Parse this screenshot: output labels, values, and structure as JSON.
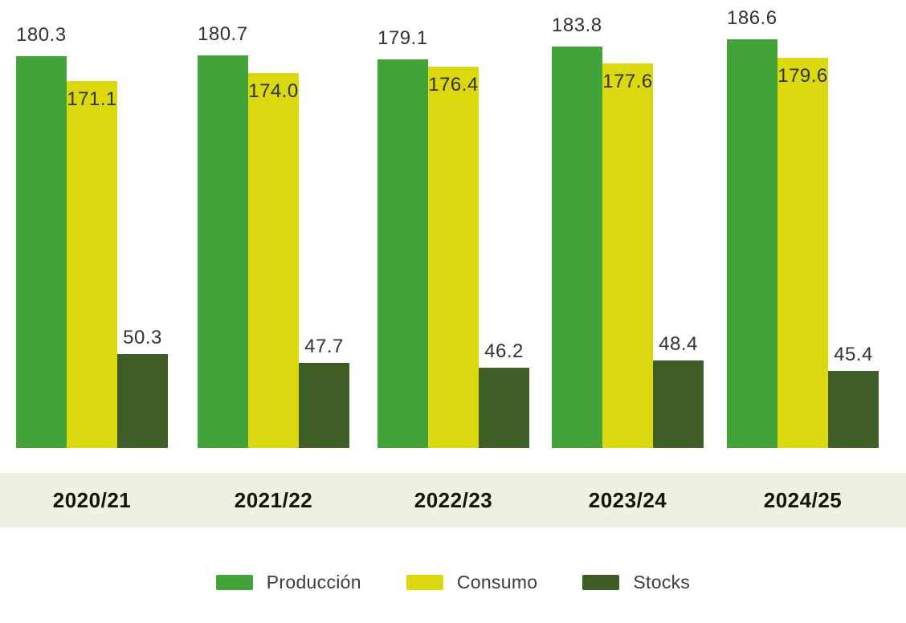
{
  "chart_data": {
    "type": "bar",
    "title": "",
    "categories": [
      "2020/21",
      "2021/22",
      "2022/23",
      "2023/24",
      "2024/25"
    ],
    "series": [
      {
        "name": "Producción",
        "color": "#43a339",
        "values": [
          180.3,
          180.7,
          179.1,
          183.8,
          186.6
        ],
        "display": [
          "180.3",
          "180.7",
          "179.1",
          "183.8",
          "186.6"
        ]
      },
      {
        "name": "Consumo",
        "color": "#dcd810",
        "values": [
          171.1,
          174.0,
          176.4,
          177.6,
          179.6
        ],
        "display": [
          "171.1",
          "174.0",
          "176.4",
          "177.6",
          "179.6"
        ]
      },
      {
        "name": "Stocks",
        "color": "#3f5d27",
        "values": [
          50.3,
          47.7,
          46.2,
          48.4,
          45.4
        ],
        "display": [
          "50.3",
          "47.7",
          "46.2",
          "48.4",
          "45.4"
        ]
      }
    ],
    "ylim": [
      0,
      200
    ],
    "grid": false,
    "value_labels_shown": true,
    "legend_position": "bottom"
  },
  "colors": {
    "page_background": "#ffffff",
    "axis_band_background": "#eef0e0",
    "value_label_text": "#2f3331",
    "category_label_text": "#12150c",
    "legend_text": "#3a3d3b"
  }
}
